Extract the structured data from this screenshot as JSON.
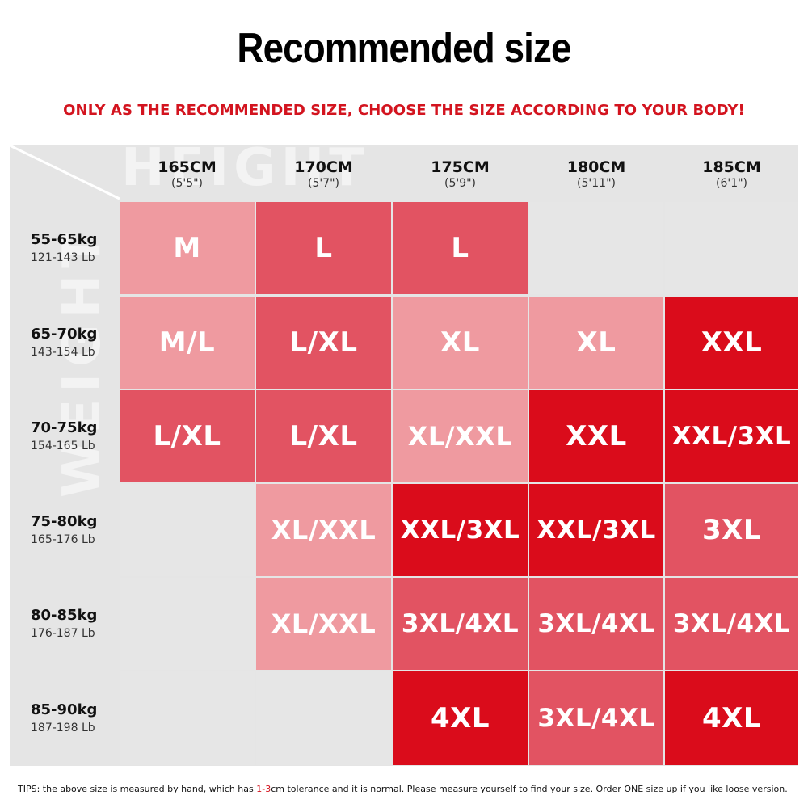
{
  "title": "Recommended size",
  "subtitle": "ONLY AS THE RECOMMENDED SIZE, CHOOSE THE SIZE ACCORDING TO YOUR BODY!",
  "watermarks": {
    "height": "HEIGHT",
    "weight": "WEIGHT"
  },
  "heights": [
    {
      "cm": "165CM",
      "ft": "(5'5\")"
    },
    {
      "cm": "170CM",
      "ft": "(5'7\")"
    },
    {
      "cm": "175CM",
      "ft": "(5'9\")"
    },
    {
      "cm": "180CM",
      "ft": "(5'11\")"
    },
    {
      "cm": "185CM",
      "ft": "(6'1\")"
    }
  ],
  "weights": [
    {
      "kg": "55-65kg",
      "lb": "121-143 Lb"
    },
    {
      "kg": "65-70kg",
      "lb": "143-154 Lb"
    },
    {
      "kg": "70-75kg",
      "lb": "154-165 Lb"
    },
    {
      "kg": "75-80kg",
      "lb": "165-176 Lb"
    },
    {
      "kg": "80-85kg",
      "lb": "176-187 Lb"
    },
    {
      "kg": "85-90kg",
      "lb": "187-198 Lb"
    }
  ],
  "colors": {
    "empty": "#e6e6e6",
    "light": "#ef9aa0",
    "medium": "#e25362",
    "dark": "#da0c1b",
    "accent": "#d3141f"
  },
  "grid": [
    [
      {
        "size": "M",
        "tone": "light"
      },
      {
        "size": "L",
        "tone": "medium"
      },
      {
        "size": "L",
        "tone": "medium"
      },
      {
        "size": "",
        "tone": "empty"
      },
      {
        "size": "",
        "tone": "empty"
      }
    ],
    [
      {
        "size": "M/L",
        "tone": "light"
      },
      {
        "size": "L/XL",
        "tone": "medium"
      },
      {
        "size": "XL",
        "tone": "light"
      },
      {
        "size": "XL",
        "tone": "light"
      },
      {
        "size": "XXL",
        "tone": "dark"
      }
    ],
    [
      {
        "size": "L/XL",
        "tone": "medium"
      },
      {
        "size": "L/XL",
        "tone": "medium"
      },
      {
        "size": "XL/XXL",
        "tone": "light"
      },
      {
        "size": "XXL",
        "tone": "dark"
      },
      {
        "size": "XXL/3XL",
        "tone": "dark"
      }
    ],
    [
      {
        "size": "",
        "tone": "empty"
      },
      {
        "size": "XL/XXL",
        "tone": "light"
      },
      {
        "size": "XXL/3XL",
        "tone": "dark"
      },
      {
        "size": "XXL/3XL",
        "tone": "dark"
      },
      {
        "size": "3XL",
        "tone": "medium"
      }
    ],
    [
      {
        "size": "",
        "tone": "empty"
      },
      {
        "size": "XL/XXL",
        "tone": "light"
      },
      {
        "size": "3XL/4XL",
        "tone": "medium"
      },
      {
        "size": "3XL/4XL",
        "tone": "medium"
      },
      {
        "size": "3XL/4XL",
        "tone": "medium"
      }
    ],
    [
      {
        "size": "",
        "tone": "empty"
      },
      {
        "size": "",
        "tone": "empty"
      },
      {
        "size": "4XL",
        "tone": "dark"
      },
      {
        "size": "3XL/4XL",
        "tone": "medium"
      },
      {
        "size": "4XL",
        "tone": "dark"
      }
    ]
  ],
  "tips": {
    "before": "TIPS:  the above size is measured by hand, which has ",
    "highlight": "1-3",
    "after": "cm tolerance and it is normal. Please measure yourself to find your size. Order ONE size up if you like loose version."
  }
}
